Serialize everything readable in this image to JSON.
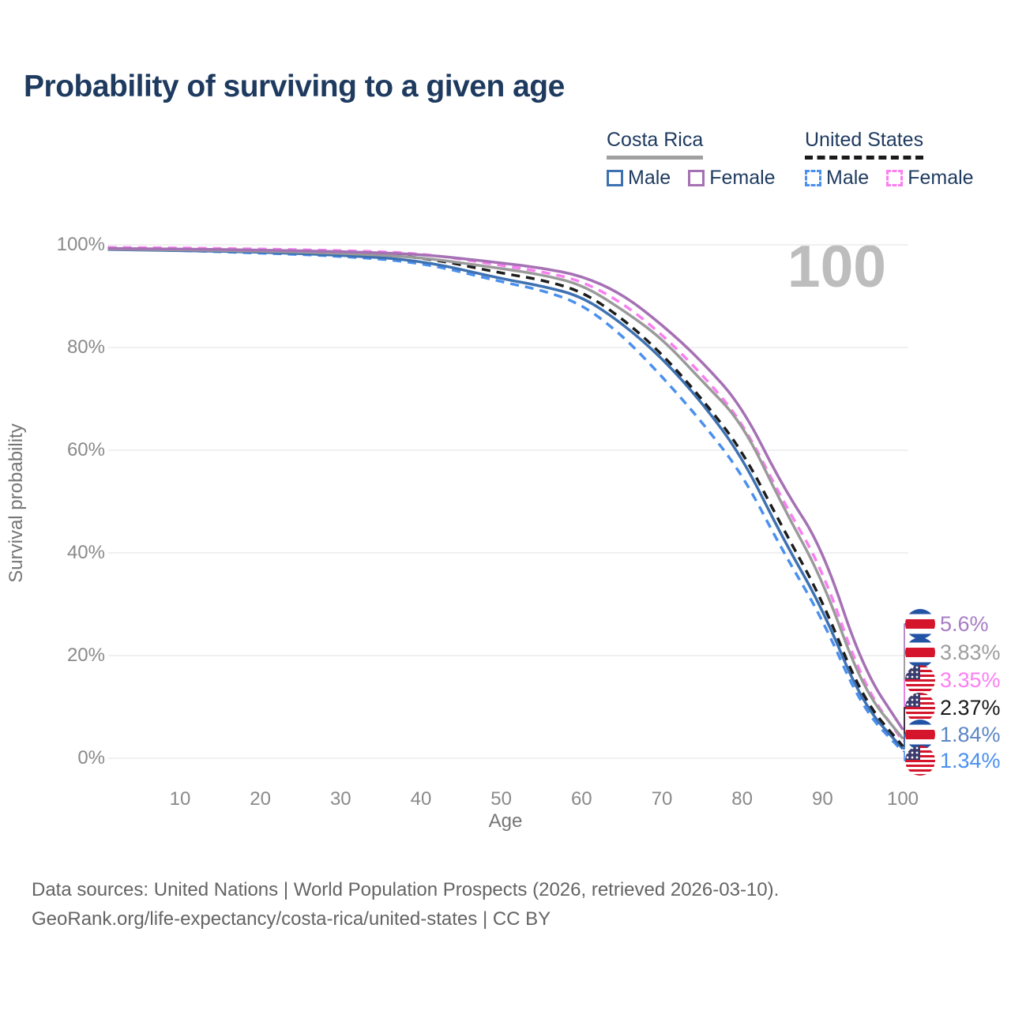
{
  "title": "Probability of surviving to a given age",
  "hover_readout": "100",
  "legend": {
    "groups": [
      {
        "name": "Costa Rica",
        "line_style": "solid",
        "line_color": "#a0a0a0",
        "items": [
          {
            "label": "Male",
            "color": "#3e71b2",
            "dashed": false
          },
          {
            "label": "Female",
            "color": "#a571b4",
            "dashed": false
          }
        ]
      },
      {
        "name": "United States",
        "line_style": "dashed",
        "line_color": "#1a1a1a",
        "items": [
          {
            "label": "Male",
            "color": "#4b90ee",
            "dashed": true
          },
          {
            "label": "Female",
            "color": "#fb7ff2",
            "dashed": true
          }
        ]
      }
    ]
  },
  "chart_data": {
    "type": "line",
    "title": "Probability of surviving to a given age",
    "xlabel": "Age",
    "ylabel": "Survival probability",
    "xlim": [
      0,
      100
    ],
    "ylim": [
      0,
      100
    ],
    "grid": "horizontal",
    "legend_position": "top-right",
    "x_ticks": [
      10,
      20,
      30,
      40,
      50,
      60,
      70,
      80,
      90,
      100
    ],
    "y_ticks": [
      "0%",
      "20%",
      "40%",
      "60%",
      "80%",
      "100%"
    ],
    "x": [
      1,
      10,
      20,
      30,
      40,
      50,
      55,
      60,
      65,
      70,
      75,
      80,
      85,
      90,
      95,
      100
    ],
    "series": [
      {
        "name": "Costa Rica Female",
        "country": "Costa Rica",
        "sex": "Female",
        "flag": "cr",
        "color": "#a571b4",
        "label_color": "#a67dc4",
        "dashed": false,
        "end_label": "5.6%",
        "values": [
          99.3,
          99.2,
          99.0,
          98.7,
          98.2,
          96.5,
          95.5,
          94.0,
          90.5,
          84.5,
          77.3,
          68.5,
          53.0,
          41.0,
          17.5,
          5.6
        ]
      },
      {
        "name": "Costa Rica Total",
        "country": "Costa Rica",
        "sex": "Both sexes",
        "flag": "cr",
        "color": "#9a9a9a",
        "label_color": "#9e9e9e",
        "dashed": false,
        "end_label": "3.83%",
        "values": [
          99.2,
          99.0,
          98.8,
          98.4,
          97.6,
          95.4,
          94.2,
          92.3,
          87.5,
          81.8,
          73.5,
          65.4,
          49.2,
          34.9,
          13.5,
          3.83
        ]
      },
      {
        "name": "United States Female",
        "country": "United States",
        "sex": "Female",
        "flag": "us",
        "color": "#f97ef0",
        "label_color": "#fb7ff2",
        "dashed": true,
        "end_label": "3.35%",
        "values": [
          99.5,
          99.4,
          99.2,
          98.9,
          98.4,
          96.0,
          94.8,
          93.0,
          88.8,
          82.6,
          74.8,
          65.6,
          50.3,
          36.9,
          14.5,
          3.35
        ]
      },
      {
        "name": "United States Total",
        "country": "United States",
        "sex": "Both sexes",
        "flag": "us",
        "color": "#1d1d1d",
        "label_color": "#1a1a1a",
        "dashed": true,
        "end_label": "2.37%",
        "values": [
          99.3,
          99.1,
          98.9,
          98.5,
          97.7,
          94.5,
          93.2,
          91.0,
          85.8,
          78.8,
          70.0,
          60.0,
          45.0,
          30.8,
          11.5,
          2.37
        ]
      },
      {
        "name": "Costa Rica Male",
        "country": "Costa Rica",
        "sex": "Male",
        "flag": "cr",
        "color": "#3e71b2",
        "label_color": "#5c86c6",
        "dashed": false,
        "end_label": "1.84%",
        "values": [
          99.1,
          98.9,
          98.6,
          98.0,
          97.0,
          93.4,
          92.0,
          90.0,
          84.8,
          78.0,
          69.3,
          58.7,
          43.0,
          29.2,
          10.5,
          1.84
        ]
      },
      {
        "name": "United States Male",
        "country": "United States",
        "sex": "Male",
        "flag": "us",
        "color": "#4b90ee",
        "label_color": "#4b90ee",
        "dashed": true,
        "end_label": "1.34%",
        "values": [
          99.2,
          98.9,
          98.4,
          97.8,
          96.6,
          92.8,
          91.2,
          88.5,
          82.5,
          74.4,
          65.5,
          55.4,
          40.5,
          27.2,
          9.5,
          1.34
        ]
      }
    ]
  },
  "footer": {
    "line1": "Data sources: United Nations | World Population Prospects (2026, retrieved 2026-03-10).",
    "line2": "GeoRank.org/life-expectancy/costa-rica/united-states | CC BY"
  }
}
